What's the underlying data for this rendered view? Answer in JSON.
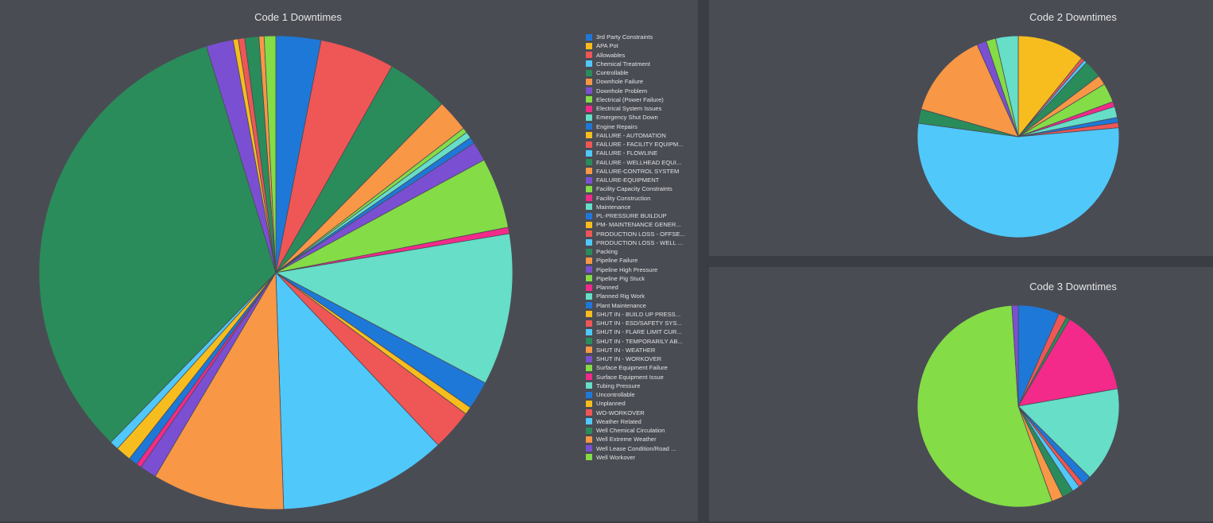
{
  "colors": [
    "#1e78d8",
    "#f7bd1e",
    "#ef5656",
    "#50c8fa",
    "#2a8c5a",
    "#f89746",
    "#7b4fd2",
    "#84dc46",
    "#f32a8a",
    "#66dec8"
  ],
  "legend": {
    "items": [
      "3rd Party Constraints",
      "APA Pot",
      "Allowables",
      "Chemical Treatment",
      "Controllable",
      "Downhole Failure",
      "Downhole Problem",
      "Electrical (Power Failure)",
      "Electrical System Issues",
      "Emergency Shut Down",
      "Engine Repairs",
      "FAILURE - AUTOMATION",
      "FAILURE - FACILITY EQUIPM...",
      "FAILURE - FLOWLINE",
      "FAILURE - WELLHEAD EQUI...",
      "FAILURE-CONTROL SYSTEM",
      "FAILURE-EQUIPMENT",
      "Facility Capacity Constraints",
      "Facility Construction",
      "Maintenance",
      "PL-PRESSURE BUILDUP",
      "PM- MAINTENANCE GENER...",
      "PRODUCTION LOSS - OFFSE...",
      "PRODUCTION LOSS - WELL ...",
      "Packing",
      "Pipeline Failure",
      "Pipeline High Pressure",
      "Pipeline Pig Stuck",
      "Planned",
      "Planned Rig Work",
      "Plant Maintenance",
      "SHUT IN - BUILD UP PRESS...",
      "SHUT IN - ESD/SAFETY SYS...",
      "SHUT IN - FLARE LIMIT CUR...",
      "SHUT IN - TEMPORARILY AB...",
      "SHUT IN - WEATHER",
      "SHUT IN - WORKOVER",
      "Surface Equipment Failure",
      "Surface Equipment Issue",
      "Tubing Pressure",
      "Uncontrollable",
      "Unplanned",
      "WO-WORKOVER",
      "Weather Related",
      "Well Chemical Circulation",
      "Well Extreme Weather",
      "Well Lease Condition/Road ...",
      "Well Workover"
    ]
  },
  "chart_data": [
    {
      "type": "pie",
      "title": "Code 1 Downtimes",
      "legend_position": "right",
      "slices": [
        {
          "color_index": 0,
          "value": 3.5
        },
        {
          "color_index": 2,
          "value": 5.8
        },
        {
          "color_index": 4,
          "value": 4.8
        },
        {
          "color_index": 5,
          "value": 2.5
        },
        {
          "color_index": 7,
          "value": 0.4
        },
        {
          "color_index": 9,
          "value": 0.5
        },
        {
          "color_index": 0,
          "value": 0.5
        },
        {
          "color_index": 6,
          "value": 1.5
        },
        {
          "color_index": 7,
          "value": 5.5
        },
        {
          "color_index": 8,
          "value": 0.5
        },
        {
          "color_index": 9,
          "value": 11.8
        },
        {
          "color_index": 0,
          "value": 2.2
        },
        {
          "color_index": 1,
          "value": 0.6
        },
        {
          "color_index": 2,
          "value": 3.2
        },
        {
          "color_index": 3,
          "value": 13.1
        },
        {
          "color_index": 5,
          "value": 10.3
        },
        {
          "color_index": 6,
          "value": 1.3
        },
        {
          "color_index": 8,
          "value": 0.4
        },
        {
          "color_index": 0,
          "value": 0.7
        },
        {
          "color_index": 1,
          "value": 1.2
        },
        {
          "color_index": 3,
          "value": 0.7
        },
        {
          "color_index": 4,
          "value": 37.6
        },
        {
          "color_index": 6,
          "value": 2.1
        },
        {
          "color_index": 1,
          "value": 0.4
        },
        {
          "color_index": 2,
          "value": 0.5
        },
        {
          "color_index": 4,
          "value": 1.1
        },
        {
          "color_index": 5,
          "value": 0.4
        },
        {
          "color_index": 7,
          "value": 0.9
        }
      ]
    },
    {
      "type": "pie",
      "title": "Code 2 Downtimes",
      "slices": [
        {
          "color_index": 1,
          "value": 10.5
        },
        {
          "color_index": 2,
          "value": 0.5
        },
        {
          "color_index": 3,
          "value": 0.5
        },
        {
          "color_index": 4,
          "value": 2.8
        },
        {
          "color_index": 5,
          "value": 1.5
        },
        {
          "color_index": 7,
          "value": 3
        },
        {
          "color_index": 8,
          "value": 0.8
        },
        {
          "color_index": 9,
          "value": 1.7
        },
        {
          "color_index": 0,
          "value": 0.8
        },
        {
          "color_index": 2,
          "value": 0.8
        },
        {
          "color_index": 3,
          "value": 52
        },
        {
          "color_index": 4,
          "value": 2.2
        },
        {
          "color_index": 5,
          "value": 13.5
        },
        {
          "color_index": 6,
          "value": 1.5
        },
        {
          "color_index": 7,
          "value": 1.5
        },
        {
          "color_index": 9,
          "value": 3.5
        }
      ]
    },
    {
      "type": "pie",
      "title": "Code 3 Downtimes",
      "slices": [
        {
          "color_index": 0,
          "value": 6.5
        },
        {
          "color_index": 2,
          "value": 1.3
        },
        {
          "color_index": 4,
          "value": 0.6
        },
        {
          "color_index": 8,
          "value": 13.5
        },
        {
          "color_index": 9,
          "value": 15
        },
        {
          "color_index": 0,
          "value": 1.4
        },
        {
          "color_index": 2,
          "value": 0.8
        },
        {
          "color_index": 3,
          "value": 1.2
        },
        {
          "color_index": 4,
          "value": 1.8
        },
        {
          "color_index": 5,
          "value": 1.8
        },
        {
          "color_index": 7,
          "value": 53.6
        },
        {
          "color_index": 6,
          "value": 1
        }
      ]
    }
  ]
}
